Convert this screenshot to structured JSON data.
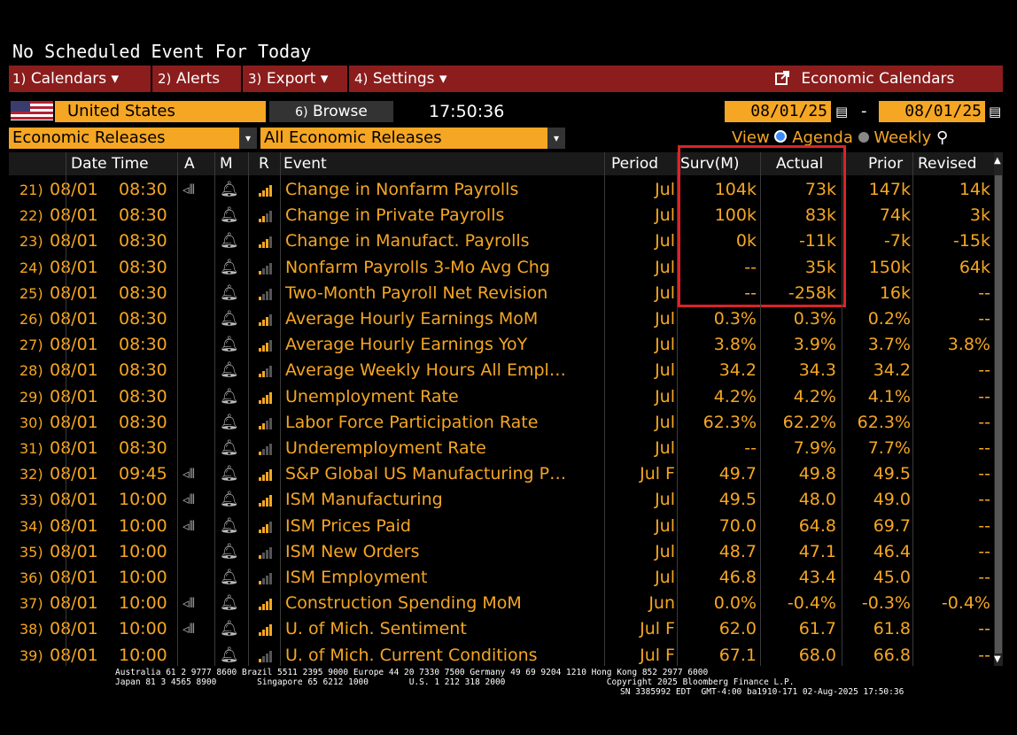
{
  "top_message": "No Scheduled Event For Today",
  "menu": [
    {
      "num": "1)",
      "label": "Calendars",
      "dropdown": true
    },
    {
      "num": "2)",
      "label": "Alerts",
      "dropdown": false
    },
    {
      "num": "3)",
      "label": "Export",
      "dropdown": true
    },
    {
      "num": "4)",
      "label": "Settings",
      "dropdown": true
    }
  ],
  "economic_calendars_label": "Economic Calendars",
  "country": "United States",
  "browse": {
    "num": "6)",
    "label": "Browse"
  },
  "time": "17:50:36",
  "date_from": "08/01/25",
  "date_to": "08/01/25",
  "date_sep": "-",
  "filter1": "Economic Releases",
  "filter2": "All Economic Releases",
  "view": {
    "label": "View",
    "agenda": "Agenda",
    "weekly": "Weekly"
  },
  "columns": {
    "datetime": "Date Time",
    "a": "A",
    "m": "M",
    "r": "R",
    "event": "Event",
    "period": "Period",
    "surv": "Surv(M)",
    "actual": "Actual",
    "prior": "Prior",
    "revised": "Revised"
  },
  "rows": [
    {
      "num": "21)",
      "date": "08/01",
      "time": "08:30",
      "speaker": true,
      "rel": 4,
      "event": "Change in Nonfarm Payrolls",
      "period": "Jul",
      "surv": "104k",
      "actual": "73k",
      "prior": "147k",
      "revised": "14k"
    },
    {
      "num": "22)",
      "date": "08/01",
      "time": "08:30",
      "speaker": false,
      "rel": 2,
      "event": "Change in Private Payrolls",
      "period": "Jul",
      "surv": "100k",
      "actual": "83k",
      "prior": "74k",
      "revised": "3k"
    },
    {
      "num": "23)",
      "date": "08/01",
      "time": "08:30",
      "speaker": false,
      "rel": 3,
      "event": "Change in Manufact. Payrolls",
      "period": "Jul",
      "surv": "0k",
      "actual": "-11k",
      "prior": "-7k",
      "revised": "-15k"
    },
    {
      "num": "24)",
      "date": "08/01",
      "time": "08:30",
      "speaker": false,
      "rel": 1,
      "event": "Nonfarm Payrolls 3-Mo Avg Chg",
      "period": "Jul",
      "surv": "--",
      "actual": "35k",
      "prior": "150k",
      "revised": "64k"
    },
    {
      "num": "25)",
      "date": "08/01",
      "time": "08:30",
      "speaker": false,
      "rel": 1,
      "event": "Two-Month Payroll Net Revision",
      "period": "Jul",
      "surv": "--",
      "actual": "-258k",
      "prior": "16k",
      "revised": "--"
    },
    {
      "num": "26)",
      "date": "08/01",
      "time": "08:30",
      "speaker": false,
      "rel": 3,
      "event": "Average Hourly Earnings MoM",
      "period": "Jul",
      "surv": "0.3%",
      "actual": "0.3%",
      "prior": "0.2%",
      "revised": "--"
    },
    {
      "num": "27)",
      "date": "08/01",
      "time": "08:30",
      "speaker": false,
      "rel": 3,
      "event": "Average Hourly Earnings YoY",
      "period": "Jul",
      "surv": "3.8%",
      "actual": "3.9%",
      "prior": "3.7%",
      "revised": "3.8%"
    },
    {
      "num": "28)",
      "date": "08/01",
      "time": "08:30",
      "speaker": false,
      "rel": 2,
      "event": "Average Weekly Hours All Empl…",
      "period": "Jul",
      "surv": "34.2",
      "actual": "34.3",
      "prior": "34.2",
      "revised": "--"
    },
    {
      "num": "29)",
      "date": "08/01",
      "time": "08:30",
      "speaker": false,
      "rel": 4,
      "event": "Unemployment Rate",
      "period": "Jul",
      "surv": "4.2%",
      "actual": "4.2%",
      "prior": "4.1%",
      "revised": "--"
    },
    {
      "num": "30)",
      "date": "08/01",
      "time": "08:30",
      "speaker": false,
      "rel": 2,
      "event": "Labor Force Participation Rate",
      "period": "Jul",
      "surv": "62.3%",
      "actual": "62.2%",
      "prior": "62.3%",
      "revised": "--"
    },
    {
      "num": "31)",
      "date": "08/01",
      "time": "08:30",
      "speaker": false,
      "rel": 1,
      "event": "Underemployment Rate",
      "period": "Jul",
      "surv": "--",
      "actual": "7.9%",
      "prior": "7.7%",
      "revised": "--"
    },
    {
      "num": "32)",
      "date": "08/01",
      "time": "09:45",
      "speaker": true,
      "rel": 4,
      "event": "S&P Global US Manufacturing P…",
      "period": "Jul F",
      "surv": "49.7",
      "actual": "49.8",
      "prior": "49.5",
      "revised": "--"
    },
    {
      "num": "33)",
      "date": "08/01",
      "time": "10:00",
      "speaker": true,
      "rel": 4,
      "event": "ISM Manufacturing",
      "period": "Jul",
      "surv": "49.5",
      "actual": "48.0",
      "prior": "49.0",
      "revised": "--"
    },
    {
      "num": "34)",
      "date": "08/01",
      "time": "10:00",
      "speaker": true,
      "rel": 3,
      "event": "ISM Prices Paid",
      "period": "Jul",
      "surv": "70.0",
      "actual": "64.8",
      "prior": "69.7",
      "revised": "--"
    },
    {
      "num": "35)",
      "date": "08/01",
      "time": "10:00",
      "speaker": false,
      "rel": 1,
      "event": "ISM New Orders",
      "period": "Jul",
      "surv": "48.7",
      "actual": "47.1",
      "prior": "46.4",
      "revised": "--"
    },
    {
      "num": "36)",
      "date": "08/01",
      "time": "10:00",
      "speaker": false,
      "rel": 1,
      "event": "ISM Employment",
      "period": "Jul",
      "surv": "46.8",
      "actual": "43.4",
      "prior": "45.0",
      "revised": "--"
    },
    {
      "num": "37)",
      "date": "08/01",
      "time": "10:00",
      "speaker": true,
      "rel": 4,
      "event": "Construction Spending MoM",
      "period": "Jun",
      "surv": "0.0%",
      "actual": "-0.4%",
      "prior": "-0.3%",
      "revised": "-0.4%"
    },
    {
      "num": "38)",
      "date": "08/01",
      "time": "10:00",
      "speaker": true,
      "rel": 4,
      "event": "U. of Mich. Sentiment",
      "period": "Jul F",
      "surv": "62.0",
      "actual": "61.7",
      "prior": "61.8",
      "revised": "--"
    },
    {
      "num": "39)",
      "date": "08/01",
      "time": "10:00",
      "speaker": false,
      "rel": 1,
      "event": "U. of Mich. Current Conditions",
      "period": "Jul F",
      "surv": "67.1",
      "actual": "68.0",
      "prior": "66.8",
      "revised": "--"
    }
  ],
  "footer": {
    "line1": "Australia 61 2 9777 8600 Brazil 5511 2395 9000 Europe 44 20 7330 7500 Germany 49 69 9204 1210 Hong Kong 852 2977 6000",
    "line2": "Japan 81 3 4565 8900        Singapore 65 6212 1000        U.S. 1 212 318 2000                    Copyright 2025 Bloomberg Finance L.P.",
    "line3": "SN 3385992 EDT  GMT-4:00 ba1910-171 02-Aug-2025 17:50:36"
  },
  "colors": {
    "accent": "#f5a623",
    "menu_bg": "#8b1d1d",
    "highlight": "#d8242a",
    "bars_on": "#f5a623",
    "bars_off": "#555555"
  }
}
